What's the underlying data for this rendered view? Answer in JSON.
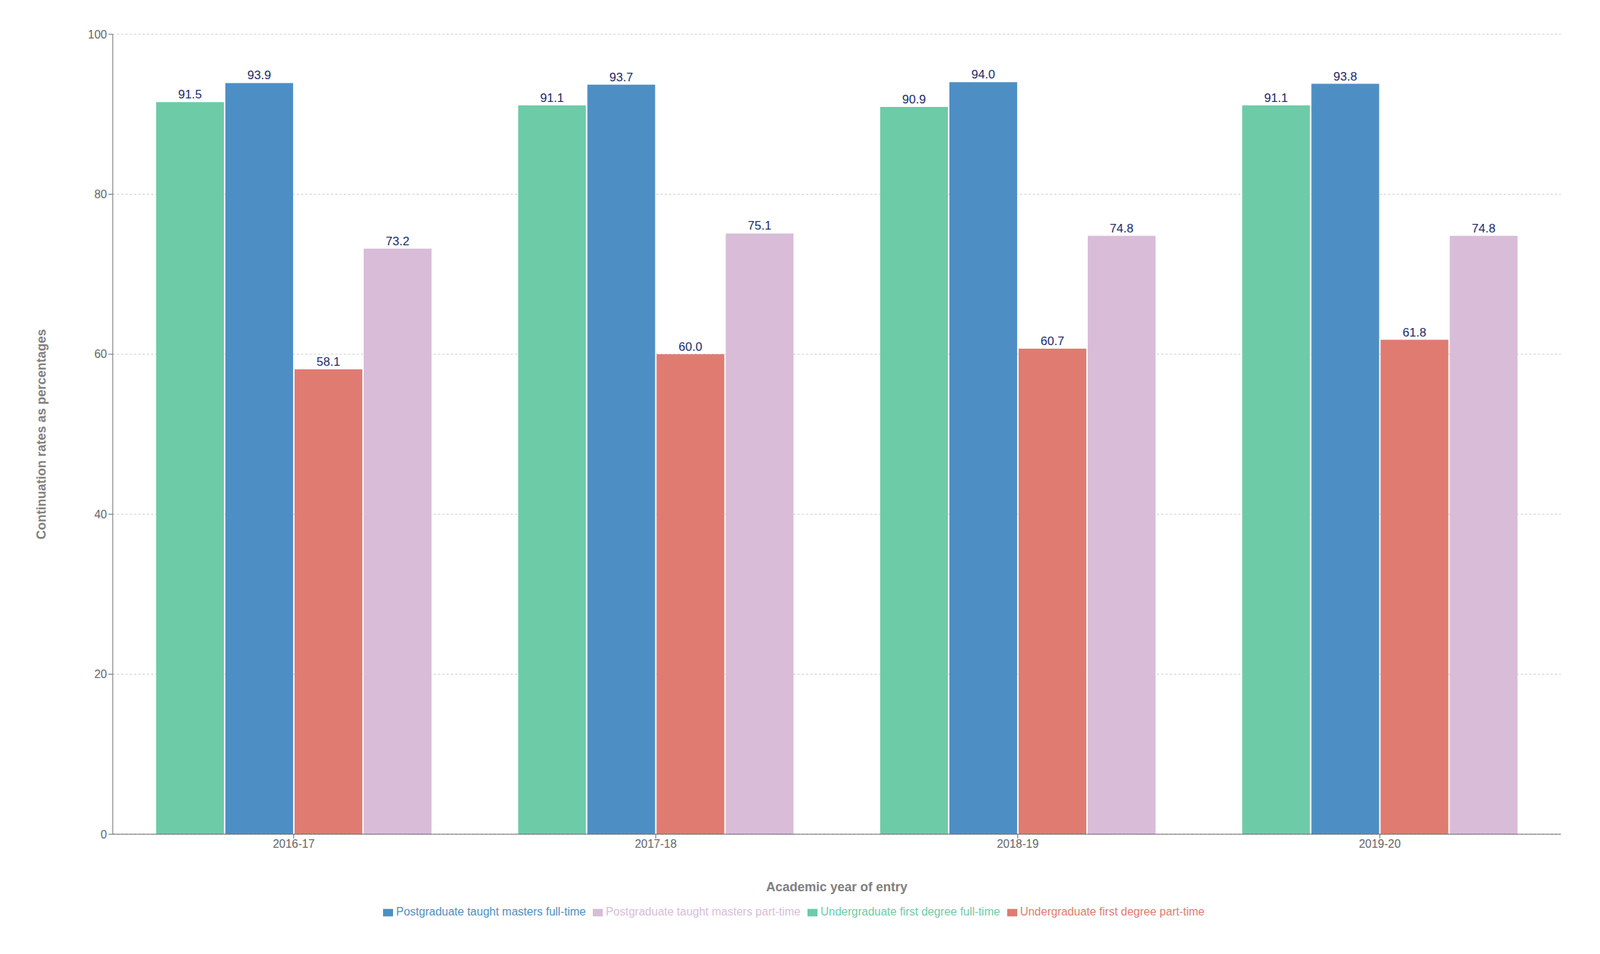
{
  "chart_data": {
    "type": "bar",
    "categories": [
      "2016-17",
      "2017-18",
      "2018-19",
      "2019-20"
    ],
    "series": [
      {
        "name": "Undergraduate first degree full-time",
        "color": "#6dcba8",
        "values": [
          91.5,
          91.1,
          90.9,
          91.1
        ],
        "value_labels": [
          "91.5",
          "91.1",
          "90.9",
          "91.1"
        ]
      },
      {
        "name": "Postgraduate taught masters full-time",
        "color": "#4d8fc4",
        "values": [
          93.9,
          93.7,
          94.0,
          93.8
        ],
        "value_labels": [
          "93.9",
          "93.7",
          "94.0",
          "93.8"
        ]
      },
      {
        "name": "Undergraduate first degree part-time",
        "color": "#e07b72",
        "values": [
          58.1,
          60.0,
          60.7,
          61.8
        ],
        "value_labels": [
          "58.1",
          "60.0",
          "60.7",
          "61.8"
        ]
      },
      {
        "name": "Postgraduate taught masters part-time",
        "color": "#d8bcd8",
        "values": [
          73.2,
          75.1,
          74.8,
          74.8
        ],
        "value_labels": [
          "73.2",
          "75.1",
          "74.8",
          "74.8"
        ]
      }
    ],
    "xlabel": "Academic year of entry",
    "ylabel": "Continuation rates as percentages",
    "ylim": [
      0,
      100
    ],
    "yticks": [
      0,
      20,
      40,
      60,
      80,
      100
    ],
    "grid": true,
    "legend": "bottom",
    "data_labels": true
  }
}
